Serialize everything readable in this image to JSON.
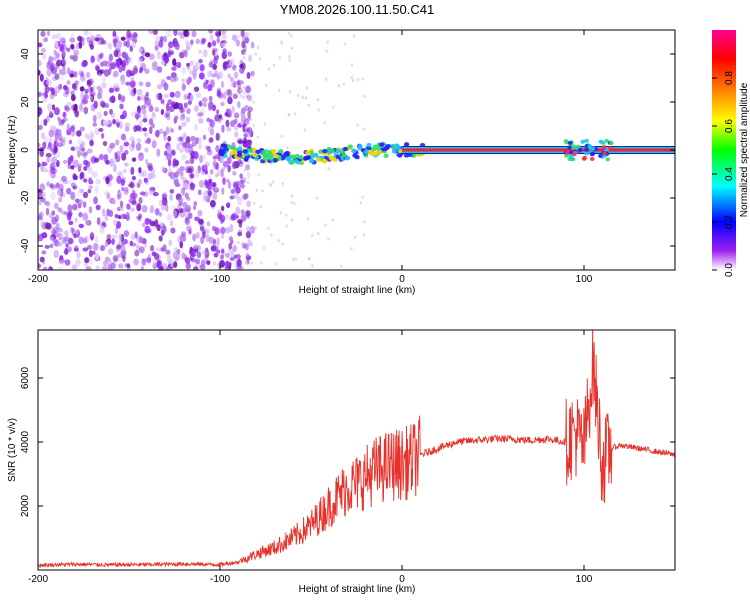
{
  "title": "YM08.2026.100.11.50.C41",
  "chart_data": [
    {
      "type": "heatmap",
      "xlabel": "Height of straight line (km)",
      "ylabel": "Frequency (Hz)",
      "xlim": [
        -200,
        150
      ],
      "ylim": [
        -50,
        50
      ],
      "xticks": [
        -200,
        -100,
        0,
        100
      ],
      "yticks": [
        -40,
        -20,
        0,
        20,
        40
      ],
      "colorbar": {
        "label": "Normalized spectral amplitude",
        "ticks": [
          0.0,
          0.2,
          0.4,
          0.6,
          0.8
        ],
        "range": [
          0,
          1
        ],
        "colors": [
          "#ffffff",
          "#a020f0",
          "#0000ff",
          "#00ffff",
          "#00ff00",
          "#ffff00",
          "#ff8000",
          "#ff0000",
          "#ff0080"
        ]
      },
      "features": {
        "noise_region_x": [
          -200,
          -90
        ],
        "signal_line_frequency": 0,
        "signal_line_x": [
          -100,
          150
        ],
        "bright_cluster_x": [
          90,
          115
        ]
      }
    },
    {
      "type": "line",
      "xlabel": "Height of straight line (km)",
      "ylabel": "SNR (10 * v/v)",
      "xlim": [
        -200,
        150
      ],
      "ylim": [
        0,
        7500
      ],
      "xticks": [
        -200,
        -100,
        0,
        100
      ],
      "yticks": [
        2000,
        4000,
        6000
      ],
      "series": [
        {
          "name": "SNR",
          "color": "#e8312a",
          "x": [
            -200,
            -180,
            -160,
            -140,
            -120,
            -100,
            -90,
            -80,
            -70,
            -60,
            -50,
            -45,
            -40,
            -35,
            -30,
            -25,
            -20,
            -15,
            -10,
            -5,
            0,
            5,
            10,
            20,
            30,
            40,
            50,
            60,
            70,
            80,
            90,
            95,
            100,
            105,
            110,
            115,
            120,
            130,
            140,
            150
          ],
          "values": [
            150,
            180,
            160,
            170,
            190,
            170,
            250,
            500,
            700,
            1000,
            1400,
            1700,
            2000,
            2300,
            2600,
            2700,
            2900,
            3100,
            3200,
            3300,
            3300,
            3400,
            3600,
            3800,
            4000,
            4050,
            4100,
            4100,
            4050,
            4100,
            4000,
            4300,
            3800,
            6500,
            3300,
            3800,
            3900,
            3800,
            3700,
            3600
          ]
        }
      ]
    }
  ]
}
